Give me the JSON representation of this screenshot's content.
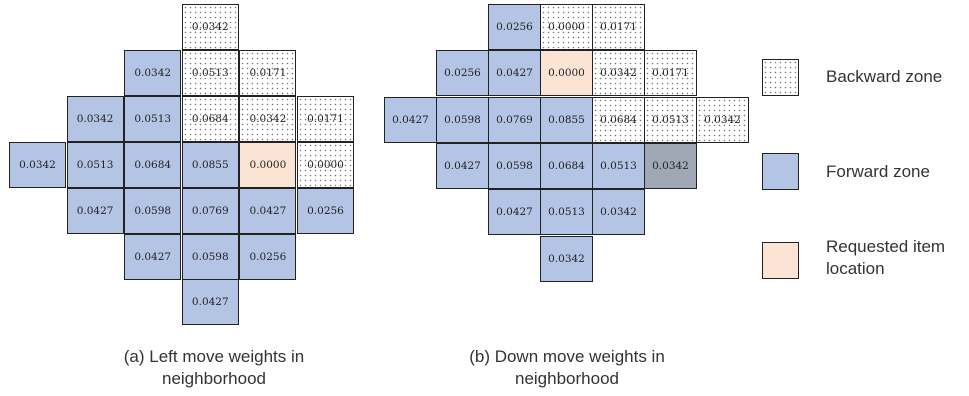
{
  "colors": {
    "forward": "#b4c4e4",
    "requested": "#fbe4d4",
    "highlight": "#a0a8b6",
    "border": "#222222"
  },
  "left": {
    "caption": [
      "(a) Left move weights in",
      "neighborhood"
    ],
    "rows": [
      [
        null,
        null,
        null,
        {
          "v": "0.0342",
          "t": "backward"
        },
        null,
        null
      ],
      [
        null,
        null,
        {
          "v": "0.0342",
          "t": "forward"
        },
        {
          "v": "0.0513",
          "t": "backward"
        },
        {
          "v": "0.0171",
          "t": "backward"
        },
        null
      ],
      [
        null,
        {
          "v": "0.0342",
          "t": "forward"
        },
        {
          "v": "0.0513",
          "t": "forward"
        },
        {
          "v": "0.0684",
          "t": "backward"
        },
        {
          "v": "0.0342",
          "t": "backward"
        },
        {
          "v": "0.0171",
          "t": "backward"
        }
      ],
      [
        {
          "v": "0.0342",
          "t": "forward"
        },
        {
          "v": "0.0513",
          "t": "forward"
        },
        {
          "v": "0.0684",
          "t": "forward"
        },
        {
          "v": "0.0855",
          "t": "forward"
        },
        {
          "v": "0.0000",
          "t": "requested"
        },
        {
          "v": "0.0000",
          "t": "backward"
        }
      ],
      [
        null,
        {
          "v": "0.0427",
          "t": "forward"
        },
        {
          "v": "0.0598",
          "t": "forward"
        },
        {
          "v": "0.0769",
          "t": "forward"
        },
        {
          "v": "0.0427",
          "t": "forward"
        },
        {
          "v": "0.0256",
          "t": "forward"
        }
      ],
      [
        null,
        null,
        {
          "v": "0.0427",
          "t": "forward"
        },
        {
          "v": "0.0598",
          "t": "forward"
        },
        {
          "v": "0.0256",
          "t": "forward"
        },
        null
      ],
      [
        null,
        null,
        null,
        {
          "v": "0.0427",
          "t": "forward"
        },
        null,
        null
      ]
    ]
  },
  "right": {
    "caption": [
      "(b) Down move weights in",
      "neighborhood"
    ],
    "rows": [
      [
        null,
        null,
        {
          "v": "0.0256",
          "t": "forward"
        },
        {
          "v": "0.0000",
          "t": "backward"
        },
        {
          "v": "0.0171",
          "t": "backward"
        },
        null,
        null
      ],
      [
        null,
        {
          "v": "0.0256",
          "t": "forward"
        },
        {
          "v": "0.0427",
          "t": "forward"
        },
        {
          "v": "0.0000",
          "t": "requested"
        },
        {
          "v": "0.0342",
          "t": "backward"
        },
        {
          "v": "0.0171",
          "t": "backward"
        },
        null
      ],
      [
        {
          "v": "0.0427",
          "t": "forward"
        },
        {
          "v": "0.0598",
          "t": "forward"
        },
        {
          "v": "0.0769",
          "t": "forward"
        },
        {
          "v": "0.0855",
          "t": "forward"
        },
        {
          "v": "0.0684",
          "t": "backward"
        },
        {
          "v": "0.0513",
          "t": "backward"
        },
        {
          "v": "0.0342",
          "t": "backward"
        }
      ],
      [
        null,
        {
          "v": "0.0427",
          "t": "forward"
        },
        {
          "v": "0.0598",
          "t": "forward"
        },
        {
          "v": "0.0684",
          "t": "forward"
        },
        {
          "v": "0.0513",
          "t": "forward"
        },
        {
          "v": "0.0342",
          "t": "dark"
        },
        null
      ],
      [
        null,
        null,
        {
          "v": "0.0427",
          "t": "forward"
        },
        {
          "v": "0.0513",
          "t": "forward"
        },
        {
          "v": "0.0342",
          "t": "forward"
        },
        null,
        null
      ],
      [
        null,
        null,
        null,
        {
          "v": "0.0342",
          "t": "forward"
        },
        null,
        null,
        null
      ]
    ]
  },
  "legend": [
    {
      "type": "backward",
      "label": [
        "Backward zone"
      ]
    },
    {
      "type": "forward",
      "label": [
        "Forward zone"
      ]
    },
    {
      "type": "requested",
      "label": [
        "Requested item",
        "location"
      ]
    }
  ]
}
